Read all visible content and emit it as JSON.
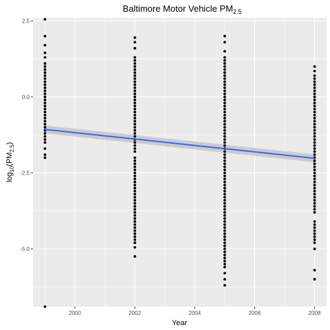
{
  "chart_data": {
    "type": "scatter",
    "title": "Baltimore Motor Vehicle PM",
    "title_sub": "2.5",
    "xlabel": "Year",
    "ylabel_main": "log",
    "ylabel_sub1": "10",
    "ylabel_mid": "(PM",
    "ylabel_sub2": "2.5",
    "ylabel_end": ")",
    "xlim": [
      1998.6,
      2008.4
    ],
    "ylim": [
      -6.9,
      2.6
    ],
    "x_ticks": [
      2000,
      2002,
      2004,
      2006,
      2008
    ],
    "x_tick_labels": [
      "2000",
      "2002",
      "2004",
      "2006",
      "2008"
    ],
    "y_ticks": [
      2.5,
      0.0,
      -2.5,
      -5.0
    ],
    "y_tick_labels": [
      "2.5",
      "0.0",
      "-2.5",
      "-5.0"
    ],
    "grid": true,
    "colors": {
      "panel": "#ebebeb",
      "grid": "#ffffff",
      "points": "#000000",
      "fit_line": "#3366ff",
      "confidence_band": "#c8c8c8"
    },
    "series": [
      {
        "year": 1999,
        "values": [
          2.55,
          2.0,
          1.7,
          1.45,
          1.3,
          1.1,
          1.0,
          0.9,
          0.8,
          0.7,
          0.6,
          0.5,
          0.4,
          0.3,
          0.2,
          0.1,
          0.0,
          -0.1,
          -0.2,
          -0.3,
          -0.4,
          -0.5,
          -0.6,
          -0.7,
          -0.8,
          -0.9,
          -1.0,
          -1.1,
          -1.2,
          -1.3,
          -1.4,
          -1.5,
          -1.7,
          -1.9,
          -2.0,
          -6.9
        ]
      },
      {
        "year": 2002,
        "values": [
          1.95,
          1.8,
          1.6,
          1.3,
          1.2,
          1.1,
          1.0,
          0.9,
          0.8,
          0.7,
          0.6,
          0.5,
          0.4,
          0.3,
          0.2,
          0.1,
          0.0,
          -0.1,
          -0.2,
          -0.3,
          -0.4,
          -0.5,
          -0.6,
          -0.7,
          -0.8,
          -0.9,
          -1.0,
          -1.1,
          -1.2,
          -1.3,
          -1.4,
          -1.5,
          -1.6,
          -1.7,
          -1.8,
          -2.0,
          -2.1,
          -2.2,
          -2.3,
          -2.4,
          -2.5,
          -2.6,
          -2.7,
          -2.8,
          -2.9,
          -3.0,
          -3.1,
          -3.2,
          -3.3,
          -3.4,
          -3.5,
          -3.6,
          -3.7,
          -3.8,
          -3.9,
          -4.0,
          -4.1,
          -4.2,
          -4.3,
          -4.4,
          -4.5,
          -4.6,
          -4.7,
          -4.8,
          -4.95,
          -5.25
        ]
      },
      {
        "year": 2005,
        "values": [
          2.0,
          1.8,
          1.5,
          1.3,
          1.2,
          1.1,
          1.0,
          0.9,
          0.8,
          0.7,
          0.6,
          0.5,
          0.4,
          0.3,
          0.2,
          0.1,
          0.0,
          -0.1,
          -0.2,
          -0.3,
          -0.4,
          -0.5,
          -0.6,
          -0.7,
          -0.8,
          -0.9,
          -1.0,
          -1.1,
          -1.2,
          -1.3,
          -1.4,
          -1.5,
          -1.6,
          -1.7,
          -1.8,
          -1.9,
          -2.0,
          -2.1,
          -2.2,
          -2.3,
          -2.4,
          -2.5,
          -2.6,
          -2.7,
          -2.8,
          -2.9,
          -3.0,
          -3.1,
          -3.2,
          -3.3,
          -3.4,
          -3.5,
          -3.6,
          -3.7,
          -3.8,
          -3.9,
          -4.0,
          -4.1,
          -4.2,
          -4.3,
          -4.4,
          -4.5,
          -4.6,
          -4.7,
          -4.8,
          -4.9,
          -5.0,
          -5.1,
          -5.2,
          -5.3,
          -5.4,
          -5.5,
          -5.6,
          -5.8,
          -6.0,
          -6.2
        ]
      },
      {
        "year": 2008,
        "values": [
          1.0,
          0.85,
          0.7,
          0.6,
          0.5,
          0.4,
          0.3,
          0.2,
          0.1,
          0.0,
          -0.1,
          -0.2,
          -0.3,
          -0.4,
          -0.5,
          -0.6,
          -0.7,
          -0.8,
          -0.9,
          -1.0,
          -1.1,
          -1.2,
          -1.3,
          -1.4,
          -1.5,
          -1.6,
          -1.7,
          -1.8,
          -1.9,
          -2.0,
          -2.1,
          -2.2,
          -2.3,
          -2.4,
          -2.5,
          -2.6,
          -2.7,
          -2.8,
          -2.9,
          -3.0,
          -3.1,
          -3.2,
          -3.3,
          -3.4,
          -3.5,
          -3.6,
          -3.7,
          -3.8,
          -4.1,
          -4.2,
          -4.3,
          -4.4,
          -4.5,
          -4.6,
          -4.7,
          -4.8,
          -5.0,
          -5.7,
          -6.0
        ]
      }
    ],
    "fit_line": {
      "x": [
        1999,
        2008
      ],
      "y": [
        -1.07,
        -2.02
      ]
    },
    "confidence_band": {
      "x": [
        1999,
        2008
      ],
      "lower": [
        -1.2,
        -2.15
      ],
      "upper": [
        -0.94,
        -1.89
      ]
    }
  }
}
